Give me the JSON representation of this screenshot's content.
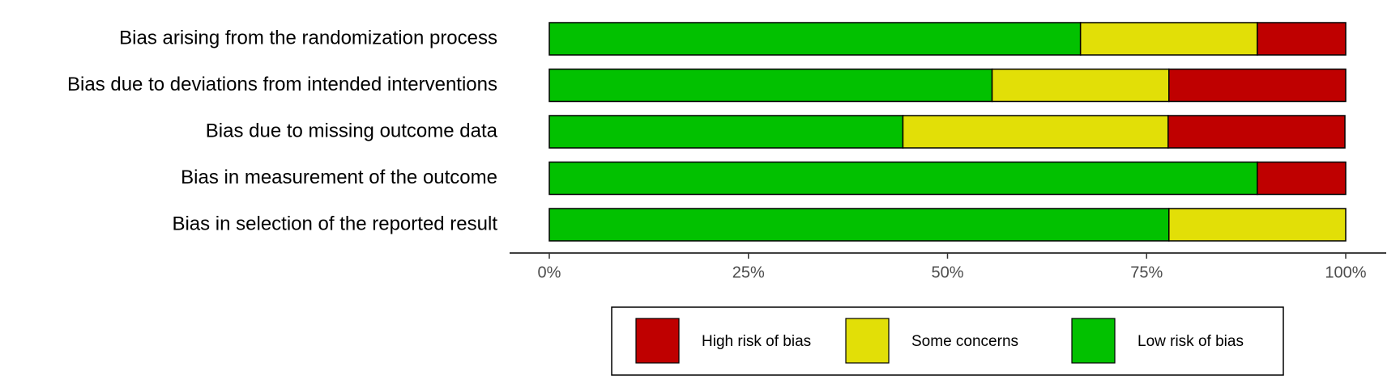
{
  "chart_data": {
    "type": "stacked-bar-horizontal",
    "categories": [
      "Bias arising from the randomization process",
      "Bias due to deviations from intended interventions",
      "Bias due to missing outcome data",
      "Bias in measurement of the outcome",
      "Bias in selection of the reported result"
    ],
    "series": [
      {
        "name": "Low risk of bias",
        "color": "#02C100",
        "values": [
          66.7,
          55.6,
          44.4,
          88.9,
          77.8
        ]
      },
      {
        "name": "Some concerns",
        "color": "#E2DF07",
        "values": [
          22.2,
          22.2,
          33.3,
          0,
          22.2
        ]
      },
      {
        "name": "High risk of bias",
        "color": "#BF0000",
        "values": [
          11.1,
          22.2,
          22.2,
          11.1,
          0
        ]
      }
    ],
    "xlim": [
      0,
      100
    ],
    "xticks": [
      {
        "value": 0,
        "label": "0%"
      },
      {
        "value": 25,
        "label": "25%"
      },
      {
        "value": 50,
        "label": "50%"
      },
      {
        "value": 75,
        "label": "75%"
      },
      {
        "value": 100,
        "label": "100%"
      }
    ],
    "legend": "bottom"
  }
}
